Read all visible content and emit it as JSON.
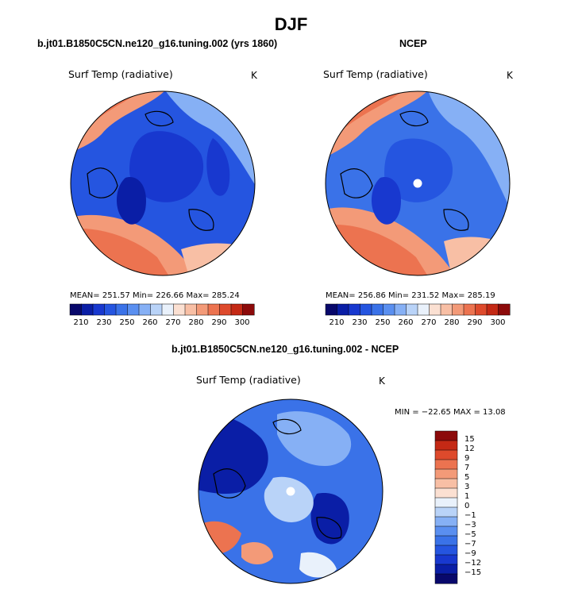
{
  "figure": {
    "title": "DJF"
  },
  "panels": [
    {
      "case_title": "b.jt01.B1850C5CN.ne120_g16.tuning.002 (yrs 1860)",
      "variable": "Surf Temp (radiative)",
      "units": "K",
      "stats": "MEAN= 251.57  Min= 226.66  Max= 285.24"
    },
    {
      "case_title": "NCEP",
      "variable": "Surf Temp (radiative)",
      "units": "K",
      "stats": "MEAN= 256.86  Min= 231.52  Max= 285.19"
    },
    {
      "case_title": "b.jt01.B1850C5CN.ne120_g16.tuning.002 - NCEP",
      "variable": "Surf Temp (radiative)",
      "units": "K",
      "stats": "MIN = −22.65 MAX =  13.08"
    }
  ],
  "abs_colorbar": {
    "colors": [
      "#08086b",
      "#0a1ea6",
      "#1838cf",
      "#2555e0",
      "#3a72e8",
      "#5a8ff0",
      "#86b0f5",
      "#b9d3f8",
      "#e9f1fb",
      "#fbe0d2",
      "#f8bfa5",
      "#f39a78",
      "#ec7350",
      "#de4a2c",
      "#c42915",
      "#8c0a0a"
    ],
    "tick_labels": [
      "210",
      "230",
      "250",
      "260",
      "270",
      "280",
      "290",
      "300"
    ]
  },
  "diff_colorbar": {
    "colors": [
      "#08086b",
      "#0a1ea6",
      "#1838cf",
      "#2555e0",
      "#3a72e8",
      "#5a8ff0",
      "#86b0f5",
      "#b9d3f8",
      "#e9f1fb",
      "#fbe0d2",
      "#f8bfa5",
      "#f39a78",
      "#ec7350",
      "#de4a2c",
      "#c42915",
      "#8c0a0a"
    ],
    "tick_labels": [
      "15",
      "12",
      "9",
      "7",
      "5",
      "3",
      "1",
      "0",
      "−1",
      "−3",
      "−5",
      "−7",
      "−9",
      "−12",
      "−15"
    ]
  },
  "map_colors": {
    "deep": "#0a1ea6",
    "dark": "#1838cf",
    "mid": "#2555e0",
    "blue": "#3a72e8",
    "light": "#86b0f5",
    "pale": "#b9d3f8",
    "white": "#e9f1fb",
    "pink": "#f8bfa5",
    "salmon": "#f39a78",
    "orange": "#ec7350",
    "red": "#de4a2c"
  }
}
